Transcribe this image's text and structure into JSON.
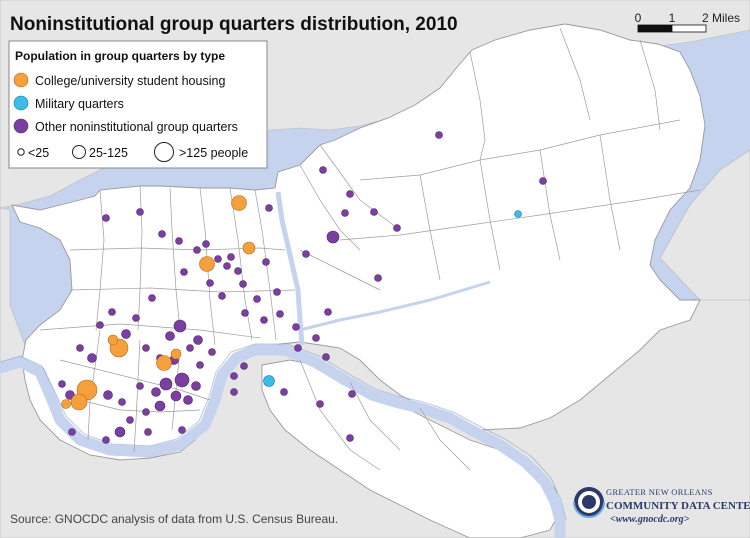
{
  "title": "Noninstitutional group quarters distribution, 2010",
  "scale_bar": {
    "tick_labels": [
      "0",
      "1",
      "2 Miles"
    ]
  },
  "legend": {
    "title": "Population in group quarters by type",
    "categories": [
      {
        "label": "College/university student housing",
        "color": "#f5a03c"
      },
      {
        "label": "Military quarters",
        "color": "#3bbde8"
      },
      {
        "label": "Other noninstitutional group quarters",
        "color": "#7b3fa0"
      }
    ],
    "sizes": [
      "<25",
      "25-125",
      ">125 people"
    ]
  },
  "source": "Source: GNOCDC analysis of data from U.S. Census Bureau.",
  "logo": {
    "line1": "Greater New Orleans",
    "line2": "Community Data Center",
    "url": "<www.gnocdc.org>"
  },
  "colors": {
    "water": "#c6d3ee",
    "land_outside": "#e6e6e6",
    "parish": "#ffffff",
    "college": "#f5a03c",
    "military": "#3bbde8",
    "other": "#7b3fa0"
  },
  "icons": [
    "logo-emblem-icon"
  ]
}
